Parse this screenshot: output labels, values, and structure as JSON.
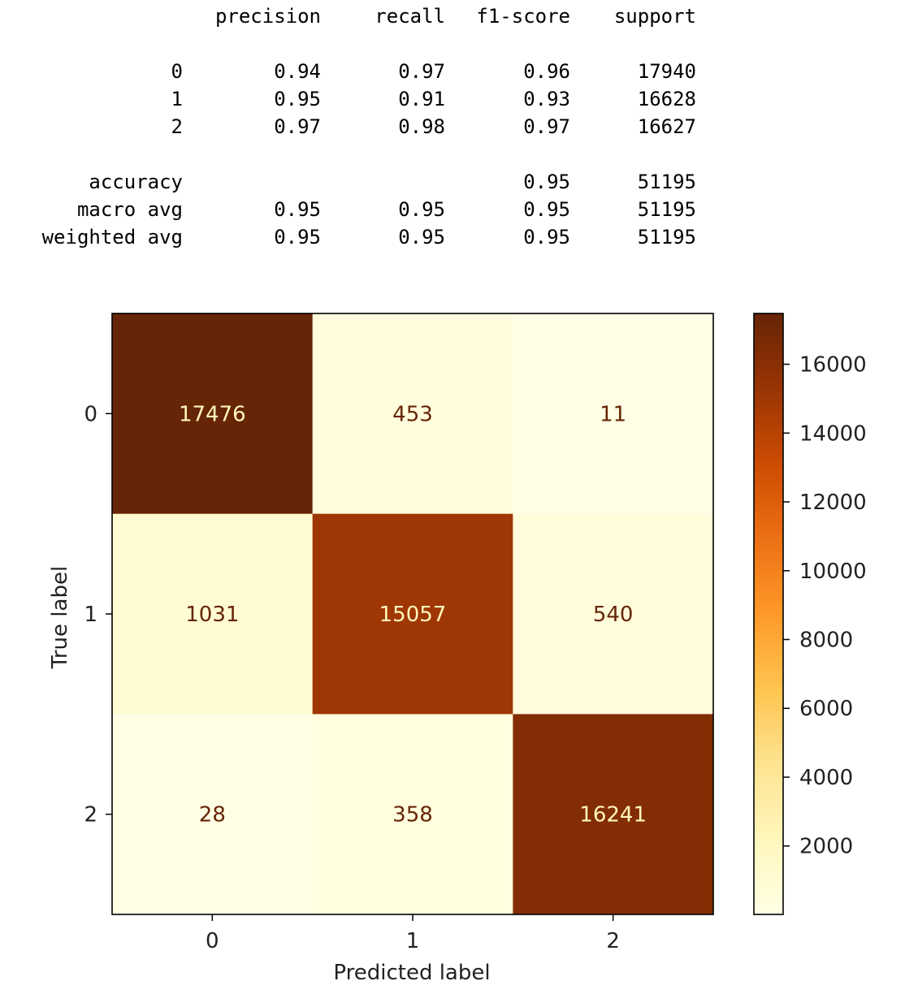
{
  "report": {
    "headers": [
      "precision",
      "recall",
      "f1-score",
      "support"
    ],
    "rows": [
      {
        "label": "0",
        "precision": "0.94",
        "recall": "0.97",
        "f1": "0.96",
        "support": "17940"
      },
      {
        "label": "1",
        "precision": "0.95",
        "recall": "0.91",
        "f1": "0.93",
        "support": "16628"
      },
      {
        "label": "2",
        "precision": "0.97",
        "recall": "0.98",
        "f1": "0.97",
        "support": "16627"
      },
      {
        "label": "accuracy",
        "precision": "",
        "recall": "",
        "f1": "0.95",
        "support": "51195"
      },
      {
        "label": "macro avg",
        "precision": "0.95",
        "recall": "0.95",
        "f1": "0.95",
        "support": "51195"
      },
      {
        "label": "weighted avg",
        "precision": "0.95",
        "recall": "0.95",
        "f1": "0.95",
        "support": "51195"
      }
    ]
  },
  "chart_data": {
    "type": "heatmap",
    "title": "",
    "xlabel": "Predicted label",
    "ylabel": "True label",
    "x_categories": [
      "0",
      "1",
      "2"
    ],
    "y_categories": [
      "0",
      "1",
      "2"
    ],
    "values": [
      [
        17476,
        453,
        11
      ],
      [
        1031,
        15057,
        540
      ],
      [
        28,
        358,
        16241
      ]
    ],
    "colormap": "YlOrBr",
    "colorbar": {
      "range": [
        11,
        17476
      ],
      "ticks": [
        2000,
        4000,
        6000,
        8000,
        10000,
        12000,
        14000,
        16000
      ]
    },
    "grid": false,
    "colors": {
      "low": "#ffffe5",
      "high": "#662506",
      "text_light": "#fff7bc",
      "text_dark": "#662506"
    }
  }
}
